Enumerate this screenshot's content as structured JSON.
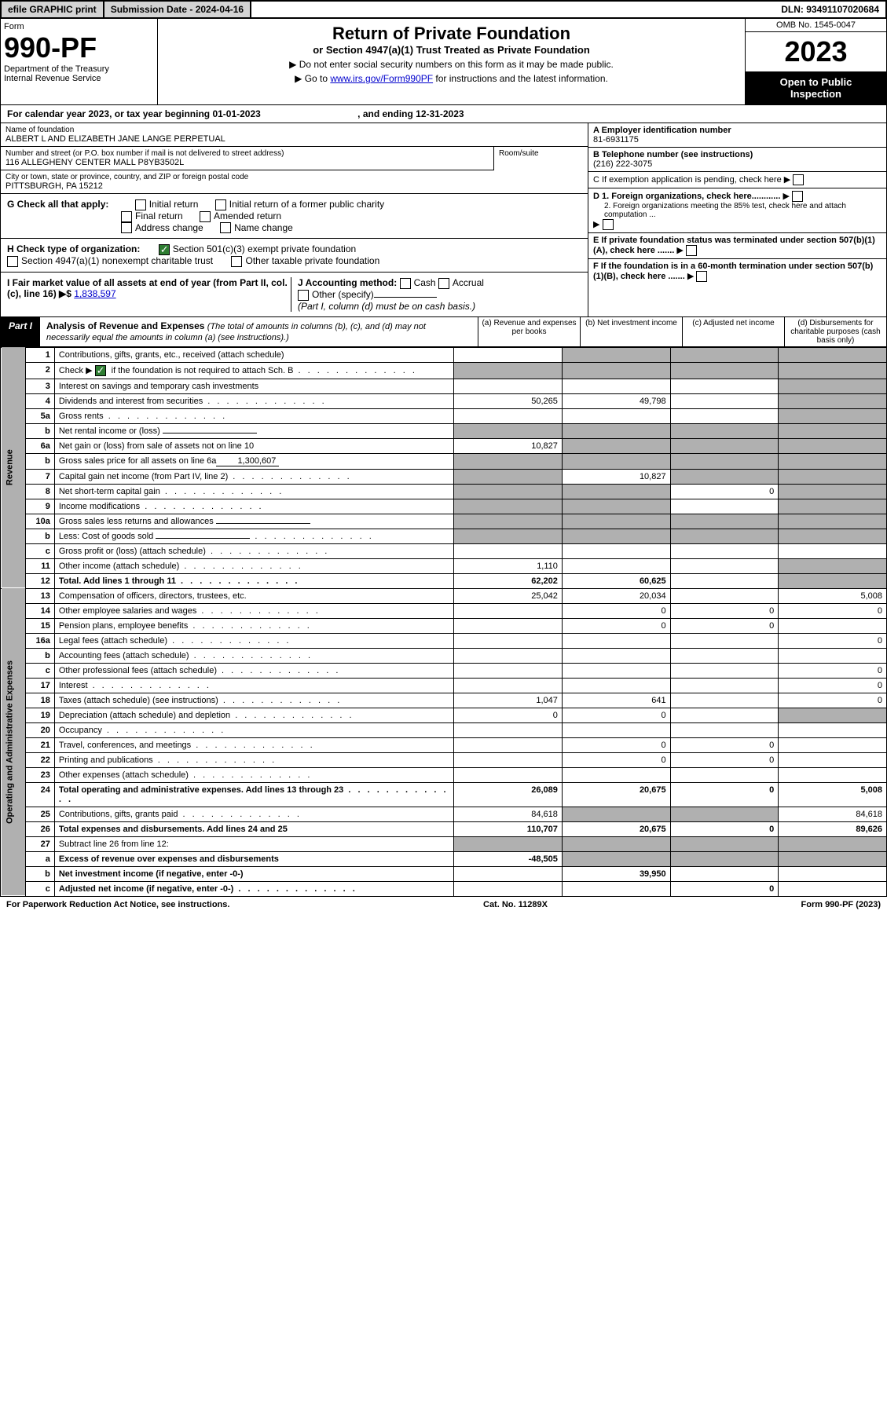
{
  "topbar": {
    "efile": "efile GRAPHIC print",
    "submission": "Submission Date - 2024-04-16",
    "dln": "DLN: 93491107020684"
  },
  "header": {
    "form_label": "Form",
    "form_num": "990-PF",
    "dept1": "Department of the Treasury",
    "dept2": "Internal Revenue Service",
    "title": "Return of Private Foundation",
    "subtitle": "or Section 4947(a)(1) Trust Treated as Private Foundation",
    "inst1": "▶ Do not enter social security numbers on this form as it may be made public.",
    "inst2_pre": "▶ Go to ",
    "inst2_link": "www.irs.gov/Form990PF",
    "inst2_post": " for instructions and the latest information.",
    "omb": "OMB No. 1545-0047",
    "year": "2023",
    "open1": "Open to Public",
    "open2": "Inspection"
  },
  "calyear": "For calendar year 2023, or tax year beginning 01-01-2023",
  "calyear_end": ", and ending 12-31-2023",
  "name_label": "Name of foundation",
  "name": "ALBERT L AND ELIZABETH JANE LANGE PERPETUAL",
  "addr_label": "Number and street (or P.O. box number if mail is not delivered to street address)",
  "addr": "116 ALLEGHENY CENTER MALL P8YB3502L",
  "room_label": "Room/suite",
  "city_label": "City or town, state or province, country, and ZIP or foreign postal code",
  "city": "PITTSBURGH, PA  15212",
  "ein_label": "A Employer identification number",
  "ein": "81-6931175",
  "phone_label": "B Telephone number (see instructions)",
  "phone": "(216) 222-3075",
  "c_label": "C If exemption application is pending, check here",
  "d1": "D 1. Foreign organizations, check here............",
  "d2": "2. Foreign organizations meeting the 85% test, check here and attach computation ...",
  "e_label": "E  If private foundation status was terminated under section 507(b)(1)(A), check here .......",
  "f_label": "F  If the foundation is in a 60-month termination under section 507(b)(1)(B), check here .......",
  "g_label": "G Check all that apply:",
  "g_opts": [
    "Initial return",
    "Initial return of a former public charity",
    "Final return",
    "Amended return",
    "Address change",
    "Name change"
  ],
  "h_label": "H Check type of organization:",
  "h1": "Section 501(c)(3) exempt private foundation",
  "h2": "Section 4947(a)(1) nonexempt charitable trust",
  "h3": "Other taxable private foundation",
  "i_label": "I Fair market value of all assets at end of year (from Part II, col. (c), line 16) ▶$",
  "i_val": "1,838,597",
  "j_label": "J Accounting method:",
  "j_cash": "Cash",
  "j_accrual": "Accrual",
  "j_other": "Other (specify)",
  "j_note": "(Part I, column (d) must be on cash basis.)",
  "part1": {
    "label": "Part I",
    "title": "Analysis of Revenue and Expenses",
    "note": "(The total of amounts in columns (b), (c), and (d) may not necessarily equal the amounts in column (a) (see instructions).)",
    "col_a": "(a)   Revenue and expenses per books",
    "col_b": "(b)   Net investment income",
    "col_c": "(c)   Adjusted net income",
    "col_d": "(d)   Disbursements for charitable purposes (cash basis only)"
  },
  "side_rev": "Revenue",
  "side_exp": "Operating and Administrative Expenses",
  "rows": [
    {
      "n": "1",
      "d": "Contributions, gifts, grants, etc., received (attach schedule)"
    },
    {
      "n": "2",
      "d": "Check ▶",
      "d2": " if the foundation is not required to attach Sch. B",
      "checked": true,
      "dots": true
    },
    {
      "n": "3",
      "d": "Interest on savings and temporary cash investments"
    },
    {
      "n": "4",
      "d": "Dividends and interest from securities",
      "a": "50,265",
      "b": "49,798",
      "dots": true
    },
    {
      "n": "5a",
      "d": "Gross rents",
      "dots": true
    },
    {
      "n": "b",
      "d": "Net rental income or (loss)",
      "inline_box": true
    },
    {
      "n": "6a",
      "d": "Net gain or (loss) from sale of assets not on line 10",
      "a": "10,827"
    },
    {
      "n": "b",
      "d": "Gross sales price for all assets on line 6a",
      "inline_val": "1,300,607"
    },
    {
      "n": "7",
      "d": "Capital gain net income (from Part IV, line 2)",
      "b": "10,827",
      "dots": true
    },
    {
      "n": "8",
      "d": "Net short-term capital gain",
      "c": "0",
      "dots": true
    },
    {
      "n": "9",
      "d": "Income modifications",
      "dots": true
    },
    {
      "n": "10a",
      "d": "Gross sales less returns and allowances",
      "inline_box": true
    },
    {
      "n": "b",
      "d": "Less: Cost of goods sold",
      "inline_box": true,
      "dots": true
    },
    {
      "n": "c",
      "d": "Gross profit or (loss) (attach schedule)",
      "dots": true
    },
    {
      "n": "11",
      "d": "Other income (attach schedule)",
      "a": "1,110",
      "dots": true
    },
    {
      "n": "12",
      "d": "Total. Add lines 1 through 11",
      "a": "62,202",
      "b": "60,625",
      "bold": true,
      "dots": true
    }
  ],
  "exp_rows": [
    {
      "n": "13",
      "d": "Compensation of officers, directors, trustees, etc.",
      "a": "25,042",
      "b": "20,034",
      "dd": "5,008"
    },
    {
      "n": "14",
      "d": "Other employee salaries and wages",
      "b": "0",
      "c": "0",
      "dd": "0",
      "dots": true
    },
    {
      "n": "15",
      "d": "Pension plans, employee benefits",
      "b": "0",
      "c": "0",
      "dots": true
    },
    {
      "n": "16a",
      "d": "Legal fees (attach schedule)",
      "dd": "0",
      "dots": true
    },
    {
      "n": "b",
      "d": "Accounting fees (attach schedule)",
      "dots": true
    },
    {
      "n": "c",
      "d": "Other professional fees (attach schedule)",
      "dd": "0",
      "dots": true
    },
    {
      "n": "17",
      "d": "Interest",
      "dd": "0",
      "dots": true
    },
    {
      "n": "18",
      "d": "Taxes (attach schedule) (see instructions)",
      "a": "1,047",
      "b": "641",
      "dd": "0",
      "dots": true
    },
    {
      "n": "19",
      "d": "Depreciation (attach schedule) and depletion",
      "a": "0",
      "b": "0",
      "dots": true
    },
    {
      "n": "20",
      "d": "Occupancy",
      "dots": true
    },
    {
      "n": "21",
      "d": "Travel, conferences, and meetings",
      "b": "0",
      "c": "0",
      "dots": true
    },
    {
      "n": "22",
      "d": "Printing and publications",
      "b": "0",
      "c": "0",
      "dots": true
    },
    {
      "n": "23",
      "d": "Other expenses (attach schedule)",
      "dots": true
    },
    {
      "n": "24",
      "d": "Total operating and administrative expenses. Add lines 13 through 23",
      "a": "26,089",
      "b": "20,675",
      "c": "0",
      "dd": "5,008",
      "bold": true,
      "dots": true
    },
    {
      "n": "25",
      "d": "Contributions, gifts, grants paid",
      "a": "84,618",
      "dd": "84,618",
      "dots": true
    },
    {
      "n": "26",
      "d": "Total expenses and disbursements. Add lines 24 and 25",
      "a": "110,707",
      "b": "20,675",
      "c": "0",
      "dd": "89,626",
      "bold": true
    },
    {
      "n": "27",
      "d": "Subtract line 26 from line 12:"
    },
    {
      "n": "a",
      "d": "Excess of revenue over expenses and disbursements",
      "a": "-48,505",
      "bold": true
    },
    {
      "n": "b",
      "d": "Net investment income (if negative, enter -0-)",
      "b": "39,950",
      "bold": true
    },
    {
      "n": "c",
      "d": "Adjusted net income (if negative, enter -0-)",
      "c": "0",
      "bold": true,
      "dots": true
    }
  ],
  "footer": {
    "left": "For Paperwork Reduction Act Notice, see instructions.",
    "mid": "Cat. No. 11289X",
    "right": "Form 990-PF (2023)"
  },
  "grey_map_rev": {
    "1": {
      "b": true,
      "c": true,
      "d": true
    },
    "2": {
      "a": true,
      "b": true,
      "c": true,
      "d": true
    },
    "3": {
      "d": true
    },
    "4": {
      "d": true
    },
    "5a": {
      "d": true
    },
    "b5": {
      "a": true,
      "b": true,
      "c": true,
      "d": true
    },
    "6a": {
      "b": true,
      "c": true,
      "d": true
    },
    "b6": {
      "a": true,
      "b": true,
      "c": true,
      "d": true
    },
    "7": {
      "a": true,
      "c": true,
      "d": true
    },
    "8": {
      "a": true,
      "b": true,
      "d": true
    },
    "9": {
      "a": true,
      "b": true,
      "d": true
    },
    "10a": {
      "a": true,
      "b": true,
      "c": true,
      "d": true
    },
    "b10": {
      "a": true,
      "b": true,
      "c": true,
      "d": true
    },
    "c10": {
      "b": true,
      "d": true
    },
    "11": {
      "d": true
    },
    "12": {
      "d": true
    }
  },
  "grey_map_exp": {
    "19": {
      "d": true
    },
    "25": {
      "b": true,
      "c": true
    },
    "27": {
      "a": true,
      "b": true,
      "c": true,
      "d": true
    },
    "a27": {
      "b": true,
      "c": true,
      "d": true
    },
    "b27": {
      "a": true,
      "c": true,
      "d": true
    },
    "c27": {
      "a": true,
      "b": true,
      "d": true
    }
  }
}
